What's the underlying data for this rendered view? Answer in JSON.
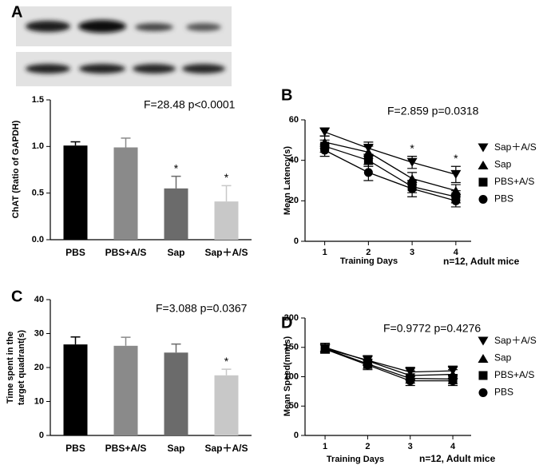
{
  "chart_data": [
    {
      "type": "bar",
      "panel": "A",
      "annotation": "F=28.48  p<0.0001",
      "ylabel": [
        "ChAT (Ratio of GAPDH)"
      ],
      "categories": [
        "PBS",
        "PBS+A/S",
        "Sap",
        "Sap＋A/S"
      ],
      "values": [
        1.01,
        0.99,
        0.55,
        0.41
      ],
      "errors": [
        0.04,
        0.1,
        0.13,
        0.17
      ],
      "colors": [
        "#000000",
        "#8a8a8a",
        "#6b6b6b",
        "#c8c8c8"
      ],
      "significance": [
        null,
        null,
        "*",
        "*"
      ],
      "ylim": [
        0,
        1.5
      ],
      "yticks": [
        {
          "value": 0,
          "label": "0.0"
        },
        {
          "value": 0.5,
          "label": "0.5"
        },
        {
          "value": 1,
          "label": "1.0"
        },
        {
          "value": 1.5,
          "label": "1.5"
        }
      ]
    },
    {
      "type": "line",
      "panel": "B",
      "annotation": "F=2.859  p=0.0318",
      "ylabel": [
        "Mean Latency(s)"
      ],
      "xlabel": "Training Days",
      "note": "n=12, Adult mice",
      "x": [
        1,
        2,
        3,
        4
      ],
      "xlim": [
        0.55,
        4.35
      ],
      "xticks": [
        1,
        2,
        3,
        4
      ],
      "ylim": [
        0,
        60
      ],
      "yticks": [
        0,
        20,
        40,
        60
      ],
      "significance": [
        null,
        null,
        "*",
        "*"
      ],
      "series": [
        {
          "name": "Sap＋A/S",
          "color": "#000000",
          "marker": "triangle-down",
          "values": [
            54,
            46,
            39,
            33
          ],
          "errors": [
            2,
            3,
            3,
            4
          ]
        },
        {
          "name": "Sap",
          "color": "#000000",
          "marker": "triangle-up",
          "values": [
            49,
            44,
            31,
            25
          ],
          "errors": [
            3,
            3,
            3,
            3
          ]
        },
        {
          "name": "PBS+A/S",
          "color": "#000000",
          "marker": "square",
          "values": [
            47,
            40,
            27,
            22
          ],
          "errors": [
            3,
            3,
            3,
            3
          ]
        },
        {
          "name": "PBS",
          "color": "#000000",
          "marker": "circle",
          "values": [
            45,
            34,
            26,
            20
          ],
          "errors": [
            3,
            4,
            4,
            3
          ]
        }
      ]
    },
    {
      "type": "bar",
      "panel": "C",
      "annotation": "F=3.088  p=0.0367",
      "ylabel": [
        "Time spent in the",
        "target quadrant(s)"
      ],
      "categories": [
        "PBS",
        "PBS+A/S",
        "Sap",
        "Sap＋A/S"
      ],
      "values": [
        26.8,
        26.4,
        24.4,
        17.7
      ],
      "errors": [
        2.2,
        2.5,
        2.5,
        1.8
      ],
      "colors": [
        "#000000",
        "#8a8a8a",
        "#6b6b6b",
        "#c8c8c8"
      ],
      "significance": [
        null,
        null,
        null,
        "*"
      ],
      "ylim": [
        0,
        40
      ],
      "yticks": [
        0,
        10,
        20,
        30,
        40
      ]
    },
    {
      "type": "line",
      "panel": "D",
      "annotation": "F=0.9772  p=0.4276",
      "ylabel": [
        "Mean Speed(mm/s)"
      ],
      "xlabel": "Training Days",
      "note": "n=12, Adult mice",
      "x": [
        1,
        2,
        3,
        4
      ],
      "xlim": [
        0.53,
        4.43
      ],
      "xticks": [
        1,
        2,
        3,
        4
      ],
      "ylim": [
        0,
        200
      ],
      "yticks": [
        0,
        50,
        100,
        150,
        200
      ],
      "series": [
        {
          "name": "Sap＋A/S",
          "color": "#000000",
          "marker": "triangle-down",
          "values": [
            148,
            128,
            108,
            110
          ],
          "errors": [
            7,
            8,
            8,
            8
          ]
        },
        {
          "name": "Sap",
          "color": "#000000",
          "marker": "triangle-up",
          "values": [
            150,
            127,
            102,
            104
          ],
          "errors": [
            7,
            8,
            8,
            8
          ]
        },
        {
          "name": "PBS+A/S",
          "color": "#000000",
          "marker": "square",
          "values": [
            148,
            122,
            97,
            96
          ],
          "errors": [
            7,
            8,
            8,
            8
          ]
        },
        {
          "name": "PBS",
          "color": "#000000",
          "marker": "circle",
          "values": [
            147,
            120,
            93,
            93
          ],
          "errors": [
            7,
            8,
            8,
            8
          ]
        }
      ]
    }
  ]
}
